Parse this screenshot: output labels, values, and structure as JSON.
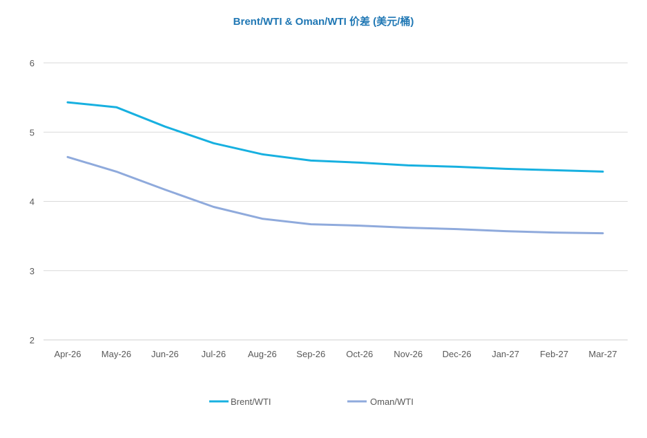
{
  "chart_data": {
    "type": "line",
    "title": "Brent/WTI & Oman/WTI 价差 (美元/桶)",
    "xlabel": "",
    "ylabel": "",
    "categories": [
      "Apr-26",
      "May-26",
      "Jun-26",
      "Jul-26",
      "Aug-26",
      "Sep-26",
      "Oct-26",
      "Nov-26",
      "Dec-26",
      "Jan-27",
      "Feb-27",
      "Mar-27"
    ],
    "ylim": [
      2,
      6
    ],
    "yticks": [
      "2",
      "3",
      "4",
      "5",
      "6"
    ],
    "grid": true,
    "legend": "bottom",
    "series": [
      {
        "name": "Brent/WTI",
        "color": "#17b0e0",
        "values": [
          5.43,
          5.36,
          5.08,
          4.84,
          4.68,
          4.59,
          4.56,
          4.52,
          4.5,
          4.47,
          4.45,
          4.43
        ]
      },
      {
        "name": "Oman/WTI",
        "color": "#8faadc",
        "values": [
          4.64,
          4.43,
          4.17,
          3.92,
          3.75,
          3.67,
          3.65,
          3.62,
          3.6,
          3.57,
          3.55,
          3.54
        ]
      }
    ]
  }
}
